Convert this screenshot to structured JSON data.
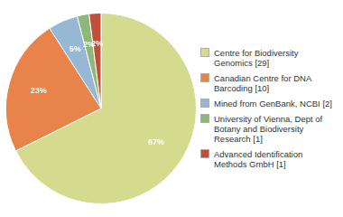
{
  "chart_data": {
    "type": "pie",
    "categories": [
      "Centre for Biodiversity\nGenomics [29]",
      "Canadian Centre for DNA\nBarcoding [10]",
      "Mined from GenBank, NCBI [2]",
      "University of Vienna, Dept of\nBotany and Biodiversity\nResearch [1]",
      "Advanced Identification\nMethods GmbH [1]"
    ],
    "values": [
      67,
      23,
      5,
      2,
      2
    ],
    "value_labels": [
      "67%",
      "23%",
      "5%",
      "2%",
      "2%"
    ],
    "colors": [
      "#d4db8e",
      "#e8844a",
      "#96b8d4",
      "#8db87a",
      "#c0503a"
    ],
    "data_labels": true,
    "legend": "right"
  }
}
